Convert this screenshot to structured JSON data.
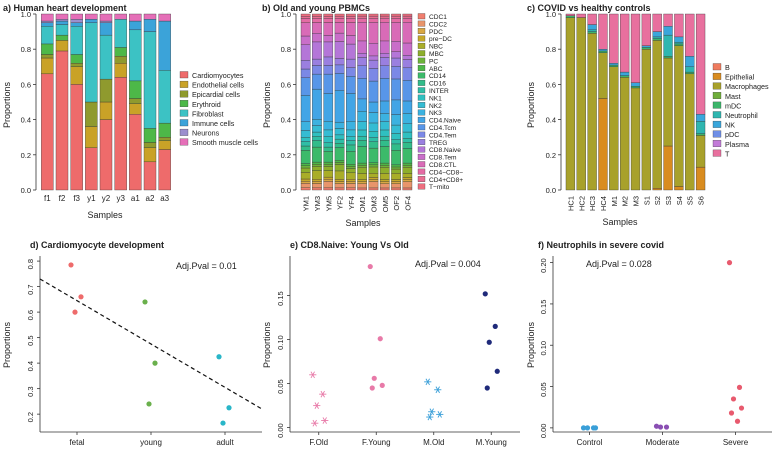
{
  "panels_top": [
    {
      "title": "a) Human heart development",
      "xlabel": "Samples",
      "ylabel": "Proportions",
      "yticks": [
        "0.0",
        "0.2",
        "0.4",
        "0.6",
        "0.8",
        "1.0"
      ],
      "samples": [
        "f1",
        "f2",
        "f3",
        "y1",
        "y2",
        "y3",
        "a1",
        "a2",
        "a3"
      ],
      "legend": [
        "Cardiomyocytes",
        "Endothelial cells",
        "Epicardial cells",
        "Erythroid",
        "Fibroblast",
        "Immune cells",
        "Neurons",
        "Smooth muscle cells"
      ],
      "colors": [
        "#ee6b6b",
        "#c9a227",
        "#8f9a2e",
        "#4db848",
        "#3cc2c4",
        "#3ba3d9",
        "#9b8fce",
        "#e56fb8"
      ],
      "stacks": [
        [
          0.66,
          0.09,
          0.02,
          0.06,
          0.1,
          0.02,
          0.01,
          0.04
        ],
        [
          0.79,
          0.06,
          0.0,
          0.03,
          0.06,
          0.02,
          0.01,
          0.03
        ],
        [
          0.6,
          0.1,
          0.02,
          0.05,
          0.16,
          0.02,
          0.02,
          0.03
        ],
        [
          0.24,
          0.12,
          0.14,
          0.0,
          0.45,
          0.02,
          0.0,
          0.03
        ],
        [
          0.4,
          0.1,
          0.13,
          0.0,
          0.25,
          0.07,
          0.01,
          0.04
        ],
        [
          0.64,
          0.08,
          0.04,
          0.05,
          0.16,
          0.0,
          0.0,
          0.03
        ],
        [
          0.43,
          0.06,
          0.03,
          0.1,
          0.29,
          0.05,
          0.0,
          0.04
        ],
        [
          0.16,
          0.08,
          0.03,
          0.08,
          0.55,
          0.07,
          0.0,
          0.03
        ],
        [
          0.23,
          0.05,
          0.02,
          0.08,
          0.3,
          0.28,
          0.0,
          0.04
        ]
      ]
    },
    {
      "title": "b) Old and young PBMCs",
      "xlabel": "Samples",
      "ylabel": "Proportions",
      "yticks": [
        "0.0",
        "0.2",
        "0.4",
        "0.6",
        "0.8",
        "1.0"
      ],
      "samples": [
        "YM1",
        "YM3",
        "YM5",
        "YF2",
        "YF4",
        "OM1",
        "OM3",
        "OM5",
        "OF2",
        "OF4"
      ],
      "legend": [
        "CDC1",
        "CDC2",
        "PDC",
        "pre−DC",
        "NBC",
        "MBC",
        "PC",
        "ABC",
        "CD14",
        "CD16",
        "INTER",
        "NK1",
        "NK2",
        "NK3",
        "CD4.Naive",
        "CD4.Tcm",
        "CD4.Tem",
        "TREG",
        "CD8.Naive",
        "CD8.Tem",
        "CD8.CTL",
        "CD4−CD8−",
        "CD4+CD8+",
        "T−mito"
      ],
      "colors": [
        "#f07e6e",
        "#e8956b",
        "#d9a743",
        "#c6a82a",
        "#a9ad28",
        "#8dae2c",
        "#6db33a",
        "#4db848",
        "#3cba6a",
        "#32bc8a",
        "#2fbea6",
        "#2fc0c0",
        "#35bcd3",
        "#3cb2e0",
        "#42a5e6",
        "#5896e8",
        "#7b88e6",
        "#9a7fe0",
        "#b476d8",
        "#c96ec9",
        "#d96bb7",
        "#e46ba4",
        "#ea6d92",
        "#ee6f80"
      ],
      "stacks": [
        [
          0.01,
          0.02,
          0.01,
          0.01,
          0.03,
          0.02,
          0.01,
          0.01,
          0.06,
          0.02,
          0.02,
          0.02,
          0.03,
          0.04,
          0.12,
          0.08,
          0.04,
          0.04,
          0.07,
          0.04,
          0.06,
          0.02,
          0.01,
          0.01
        ],
        [
          0.01,
          0.02,
          0.01,
          0.01,
          0.04,
          0.02,
          0.01,
          0.01,
          0.07,
          0.03,
          0.02,
          0.02,
          0.03,
          0.03,
          0.14,
          0.07,
          0.04,
          0.03,
          0.08,
          0.04,
          0.05,
          0.02,
          0.01,
          0.01
        ],
        [
          0.01,
          0.03,
          0.01,
          0.01,
          0.03,
          0.02,
          0.01,
          0.01,
          0.05,
          0.02,
          0.02,
          0.03,
          0.03,
          0.04,
          0.13,
          0.09,
          0.04,
          0.04,
          0.07,
          0.03,
          0.06,
          0.02,
          0.01,
          0.01
        ],
        [
          0.01,
          0.02,
          0.01,
          0.01,
          0.04,
          0.03,
          0.01,
          0.01,
          0.06,
          0.02,
          0.02,
          0.02,
          0.03,
          0.03,
          0.15,
          0.08,
          0.04,
          0.03,
          0.08,
          0.04,
          0.05,
          0.02,
          0.01,
          0.01
        ],
        [
          0.01,
          0.02,
          0.01,
          0.01,
          0.03,
          0.02,
          0.01,
          0.01,
          0.06,
          0.03,
          0.02,
          0.02,
          0.03,
          0.04,
          0.13,
          0.08,
          0.04,
          0.04,
          0.07,
          0.04,
          0.06,
          0.02,
          0.01,
          0.01
        ],
        [
          0.01,
          0.02,
          0.01,
          0.01,
          0.03,
          0.03,
          0.01,
          0.01,
          0.08,
          0.03,
          0.02,
          0.03,
          0.04,
          0.05,
          0.06,
          0.1,
          0.06,
          0.04,
          0.02,
          0.06,
          0.09,
          0.02,
          0.01,
          0.01
        ],
        [
          0.01,
          0.03,
          0.01,
          0.01,
          0.02,
          0.03,
          0.01,
          0.01,
          0.07,
          0.03,
          0.02,
          0.03,
          0.04,
          0.05,
          0.05,
          0.1,
          0.06,
          0.04,
          0.02,
          0.06,
          0.1,
          0.02,
          0.01,
          0.01
        ],
        [
          0.01,
          0.02,
          0.01,
          0.01,
          0.03,
          0.03,
          0.01,
          0.01,
          0.08,
          0.03,
          0.02,
          0.03,
          0.04,
          0.04,
          0.06,
          0.11,
          0.06,
          0.04,
          0.02,
          0.06,
          0.09,
          0.02,
          0.01,
          0.01
        ],
        [
          0.01,
          0.02,
          0.01,
          0.01,
          0.03,
          0.02,
          0.01,
          0.01,
          0.07,
          0.03,
          0.02,
          0.03,
          0.04,
          0.05,
          0.07,
          0.1,
          0.06,
          0.04,
          0.03,
          0.05,
          0.09,
          0.02,
          0.01,
          0.01
        ],
        [
          0.01,
          0.03,
          0.01,
          0.01,
          0.02,
          0.03,
          0.01,
          0.01,
          0.07,
          0.03,
          0.02,
          0.03,
          0.04,
          0.05,
          0.06,
          0.1,
          0.06,
          0.04,
          0.02,
          0.06,
          0.1,
          0.02,
          0.01,
          0.01
        ]
      ]
    },
    {
      "title": "c) COVID vs healthy controls",
      "xlabel": "Samples",
      "ylabel": "Proportions",
      "yticks": [
        "0.0",
        "0.2",
        "0.4",
        "0.6",
        "0.8",
        "1.0"
      ],
      "samples": [
        "HC1",
        "HC2",
        "HC3",
        "HC4",
        "M1",
        "M2",
        "M3",
        "S1",
        "S2",
        "S3",
        "S4",
        "S5",
        "S6"
      ],
      "legend": [
        "B",
        "Epithelial",
        "Macrophages",
        "Mast",
        "mDC",
        "Neutrophil",
        "NK",
        "pDC",
        "Plasma",
        "T"
      ],
      "colors": [
        "#ef7b5e",
        "#d98c1f",
        "#a8a12b",
        "#6fae3a",
        "#3cb56a",
        "#2fb6b0",
        "#3aa6db",
        "#6f8fe6",
        "#c27bd8",
        "#e8709e"
      ],
      "stacks": [
        [
          0.0,
          0.0,
          0.96,
          0.0,
          0.01,
          0.0,
          0.0,
          0.0,
          0.0,
          0.01
        ],
        [
          0.0,
          0.0,
          0.98,
          0.0,
          0.0,
          0.0,
          0.0,
          0.0,
          0.0,
          0.02
        ],
        [
          0.0,
          0.0,
          0.89,
          0.0,
          0.01,
          0.01,
          0.03,
          0.0,
          0.0,
          0.06
        ],
        [
          0.0,
          0.52,
          0.26,
          0.0,
          0.01,
          0.0,
          0.01,
          0.0,
          0.0,
          0.2
        ],
        [
          0.0,
          0.0,
          0.7,
          0.0,
          0.01,
          0.0,
          0.01,
          0.0,
          0.0,
          0.28
        ],
        [
          0.0,
          0.0,
          0.64,
          0.0,
          0.01,
          0.0,
          0.02,
          0.0,
          0.0,
          0.33
        ],
        [
          0.0,
          0.0,
          0.58,
          0.0,
          0.01,
          0.0,
          0.02,
          0.0,
          0.0,
          0.39
        ],
        [
          0.0,
          0.0,
          0.8,
          0.0,
          0.01,
          0.0,
          0.01,
          0.0,
          0.0,
          0.18
        ],
        [
          0.0,
          0.01,
          0.84,
          0.0,
          0.01,
          0.01,
          0.03,
          0.0,
          0.0,
          0.1
        ],
        [
          0.0,
          0.25,
          0.5,
          0.0,
          0.01,
          0.12,
          0.05,
          0.0,
          0.0,
          0.07
        ],
        [
          0.0,
          0.02,
          0.8,
          0.0,
          0.01,
          0.01,
          0.03,
          0.0,
          0.0,
          0.13
        ],
        [
          0.0,
          0.0,
          0.66,
          0.0,
          0.01,
          0.03,
          0.06,
          0.0,
          0.0,
          0.24
        ],
        [
          0.0,
          0.13,
          0.18,
          0.0,
          0.01,
          0.07,
          0.04,
          0.0,
          0.0,
          0.57
        ]
      ]
    }
  ],
  "chart_data": [
    {
      "type": "bar",
      "title": "a) Human heart development",
      "xlabel": "Samples",
      "ylabel": "Proportions",
      "ylim": [
        0,
        1
      ],
      "categories": [
        "f1",
        "f2",
        "f3",
        "y1",
        "y2",
        "y3",
        "a1",
        "a2",
        "a3"
      ],
      "series": [
        {
          "name": "Cardiomyocytes",
          "values": [
            0.66,
            0.79,
            0.6,
            0.24,
            0.4,
            0.64,
            0.43,
            0.16,
            0.23
          ]
        },
        {
          "name": "Endothelial cells",
          "values": [
            0.09,
            0.06,
            0.1,
            0.12,
            0.1,
            0.08,
            0.06,
            0.08,
            0.05
          ]
        },
        {
          "name": "Epicardial cells",
          "values": [
            0.02,
            0.0,
            0.02,
            0.14,
            0.13,
            0.04,
            0.03,
            0.03,
            0.02
          ]
        },
        {
          "name": "Erythroid",
          "values": [
            0.06,
            0.03,
            0.05,
            0.0,
            0.0,
            0.05,
            0.1,
            0.08,
            0.08
          ]
        },
        {
          "name": "Fibroblast",
          "values": [
            0.1,
            0.06,
            0.16,
            0.45,
            0.25,
            0.16,
            0.29,
            0.55,
            0.3
          ]
        },
        {
          "name": "Immune cells",
          "values": [
            0.02,
            0.02,
            0.02,
            0.02,
            0.07,
            0.0,
            0.05,
            0.07,
            0.28
          ]
        },
        {
          "name": "Neurons",
          "values": [
            0.01,
            0.01,
            0.02,
            0.0,
            0.01,
            0.0,
            0.0,
            0.0,
            0.0
          ]
        },
        {
          "name": "Smooth muscle cells",
          "values": [
            0.04,
            0.03,
            0.03,
            0.03,
            0.04,
            0.03,
            0.04,
            0.03,
            0.04
          ]
        }
      ]
    },
    {
      "type": "bar",
      "title": "b) Old and young PBMCs",
      "xlabel": "Samples",
      "ylabel": "Proportions",
      "ylim": [
        0,
        1
      ],
      "categories": [
        "YM1",
        "YM3",
        "YM5",
        "YF2",
        "YF4",
        "OM1",
        "OM3",
        "OM5",
        "OF2",
        "OF4"
      ],
      "series_names": [
        "CDC1",
        "CDC2",
        "PDC",
        "pre−DC",
        "NBC",
        "MBC",
        "PC",
        "ABC",
        "CD14",
        "CD16",
        "INTER",
        "NK1",
        "NK2",
        "NK3",
        "CD4.Naive",
        "CD4.Tcm",
        "CD4.Tem",
        "TREG",
        "CD8.Naive",
        "CD8.Tem",
        "CD8.CTL",
        "CD4−CD8−",
        "CD4+CD8+",
        "T−mito"
      ]
    },
    {
      "type": "bar",
      "title": "c) COVID vs healthy controls",
      "xlabel": "Samples",
      "ylabel": "Proportions",
      "ylim": [
        0,
        1
      ],
      "categories": [
        "HC1",
        "HC2",
        "HC3",
        "HC4",
        "M1",
        "M2",
        "M3",
        "S1",
        "S2",
        "S3",
        "S4",
        "S5",
        "S6"
      ],
      "series_names": [
        "B",
        "Epithelial",
        "Macrophages",
        "Mast",
        "mDC",
        "Neutrophil",
        "NK",
        "pDC",
        "Plasma",
        "T"
      ]
    },
    {
      "type": "scatter",
      "title": "d) Cardiomyocyte development",
      "ylabel": "Proportions",
      "ylim": [
        0.13,
        0.82
      ],
      "yticks": [
        "0.2",
        "0.3",
        "0.4",
        "0.5",
        "0.6",
        "0.7",
        "0.8"
      ],
      "annotation": "Adj.Pval = 0.01",
      "categories": [
        "fetal",
        "young",
        "adult"
      ],
      "colors": [
        "#ee6b6b",
        "#6ab04c",
        "#29b6c8"
      ],
      "points": [
        [
          0.785,
          0.66,
          0.6
        ],
        [
          0.64,
          0.4,
          0.24
        ],
        [
          0.425,
          0.225,
          0.165
        ]
      ],
      "trend": [
        0.73,
        0.22
      ]
    },
    {
      "type": "scatter",
      "title": "e) CD8.Naive: Young Vs Old",
      "ylabel": "Proportions",
      "ylim": [
        -0.005,
        0.195
      ],
      "yticks": [
        "0.00",
        "0.05",
        "0.10",
        "0.15"
      ],
      "annotation": "Adj.Pval = 0.004",
      "categories": [
        "F.Old",
        "F.Young",
        "M.Old",
        "M.Young"
      ],
      "colors": [
        "#e87aa8",
        "#e87aa8",
        "#3a9fd8",
        "#1f2a7a"
      ],
      "markers": [
        "star",
        "dot",
        "star",
        "dot"
      ],
      "points": [
        [
          0.06,
          0.038,
          0.025,
          0.008,
          0.005
        ],
        [
          0.183,
          0.101,
          0.056,
          0.048,
          0.045
        ],
        [
          0.052,
          0.043,
          0.018,
          0.015,
          0.012
        ],
        [
          0.152,
          0.115,
          0.097,
          0.064,
          0.045
        ]
      ]
    },
    {
      "type": "scatter",
      "title": "f) Neutrophils in severe covid",
      "ylabel": "Proportions",
      "ylim": [
        -0.005,
        0.208
      ],
      "yticks": [
        "0.00",
        "0.05",
        "0.10",
        "0.15",
        "0.20"
      ],
      "annotation": "Adj.Pval = 0.028",
      "categories": [
        "Control",
        "Moderate",
        "Severe"
      ],
      "colors": [
        "#3a9fd8",
        "#8a4fb3",
        "#e85a6e"
      ],
      "points": [
        [
          0.0,
          0.0,
          0.0,
          0.0
        ],
        [
          0.002,
          0.001,
          0.001
        ],
        [
          0.2,
          0.049,
          0.035,
          0.024,
          0.018,
          0.008
        ]
      ]
    }
  ]
}
